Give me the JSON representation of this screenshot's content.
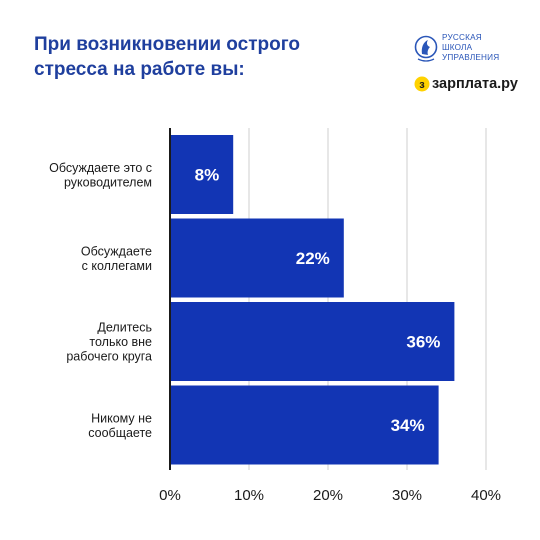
{
  "header": {
    "title_lines": [
      "При возникновении острого",
      "стресса на работе вы:"
    ]
  },
  "logos": {
    "rsu": {
      "name": "rsu-emblem-icon",
      "lines": [
        "РУССКАЯ",
        "ШКОЛА",
        "УПРАВЛЕНИЯ"
      ],
      "color": "#2a56b8"
    },
    "zarplata": {
      "name": "zarplata-dot-icon",
      "text": "зарплата.ру",
      "dot_color": "#ffd200"
    }
  },
  "chart_data": {
    "type": "bar",
    "orientation": "horizontal",
    "title": "При возникновении острого стресса на работе вы:",
    "categories": [
      [
        "Обсуждаете это с",
        "руководителем"
      ],
      [
        "Обсуждаете",
        "с коллегами"
      ],
      [
        "Делитесь",
        "только вне",
        "рабочего круга"
      ],
      [
        "Никому не",
        "сообщаете"
      ]
    ],
    "values": [
      8,
      22,
      36,
      34
    ],
    "value_labels": [
      "8%",
      "22%",
      "36%",
      "34%"
    ],
    "xlim": [
      0,
      40
    ],
    "xticks": [
      0,
      10,
      20,
      30,
      40
    ],
    "xtick_labels": [
      "0%",
      "10%",
      "20%",
      "30%",
      "40%"
    ],
    "grid": true,
    "bar_color": "#1235b4",
    "grid_color": "#cfcfcf"
  }
}
